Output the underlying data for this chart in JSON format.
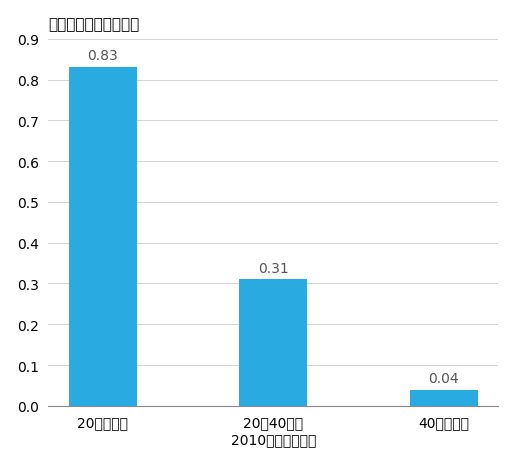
{
  "categories": [
    "20ドル以下",
    "20～40ドル",
    "40ドル以上"
  ],
  "values": [
    0.83,
    0.31,
    0.04
  ],
  "bar_color": "#29ABE2",
  "title": "機械代替の平均リスク",
  "xlabel": "2010年の平均時給",
  "ylabel": "",
  "ylim": [
    0,
    0.9
  ],
  "yticks": [
    0.0,
    0.1,
    0.2,
    0.3,
    0.4,
    0.5,
    0.6,
    0.7,
    0.8,
    0.9
  ],
  "bar_width": 0.4,
  "annotation_labels": [
    "0.83",
    "0.31",
    "0.04"
  ],
  "background_color": "#ffffff"
}
